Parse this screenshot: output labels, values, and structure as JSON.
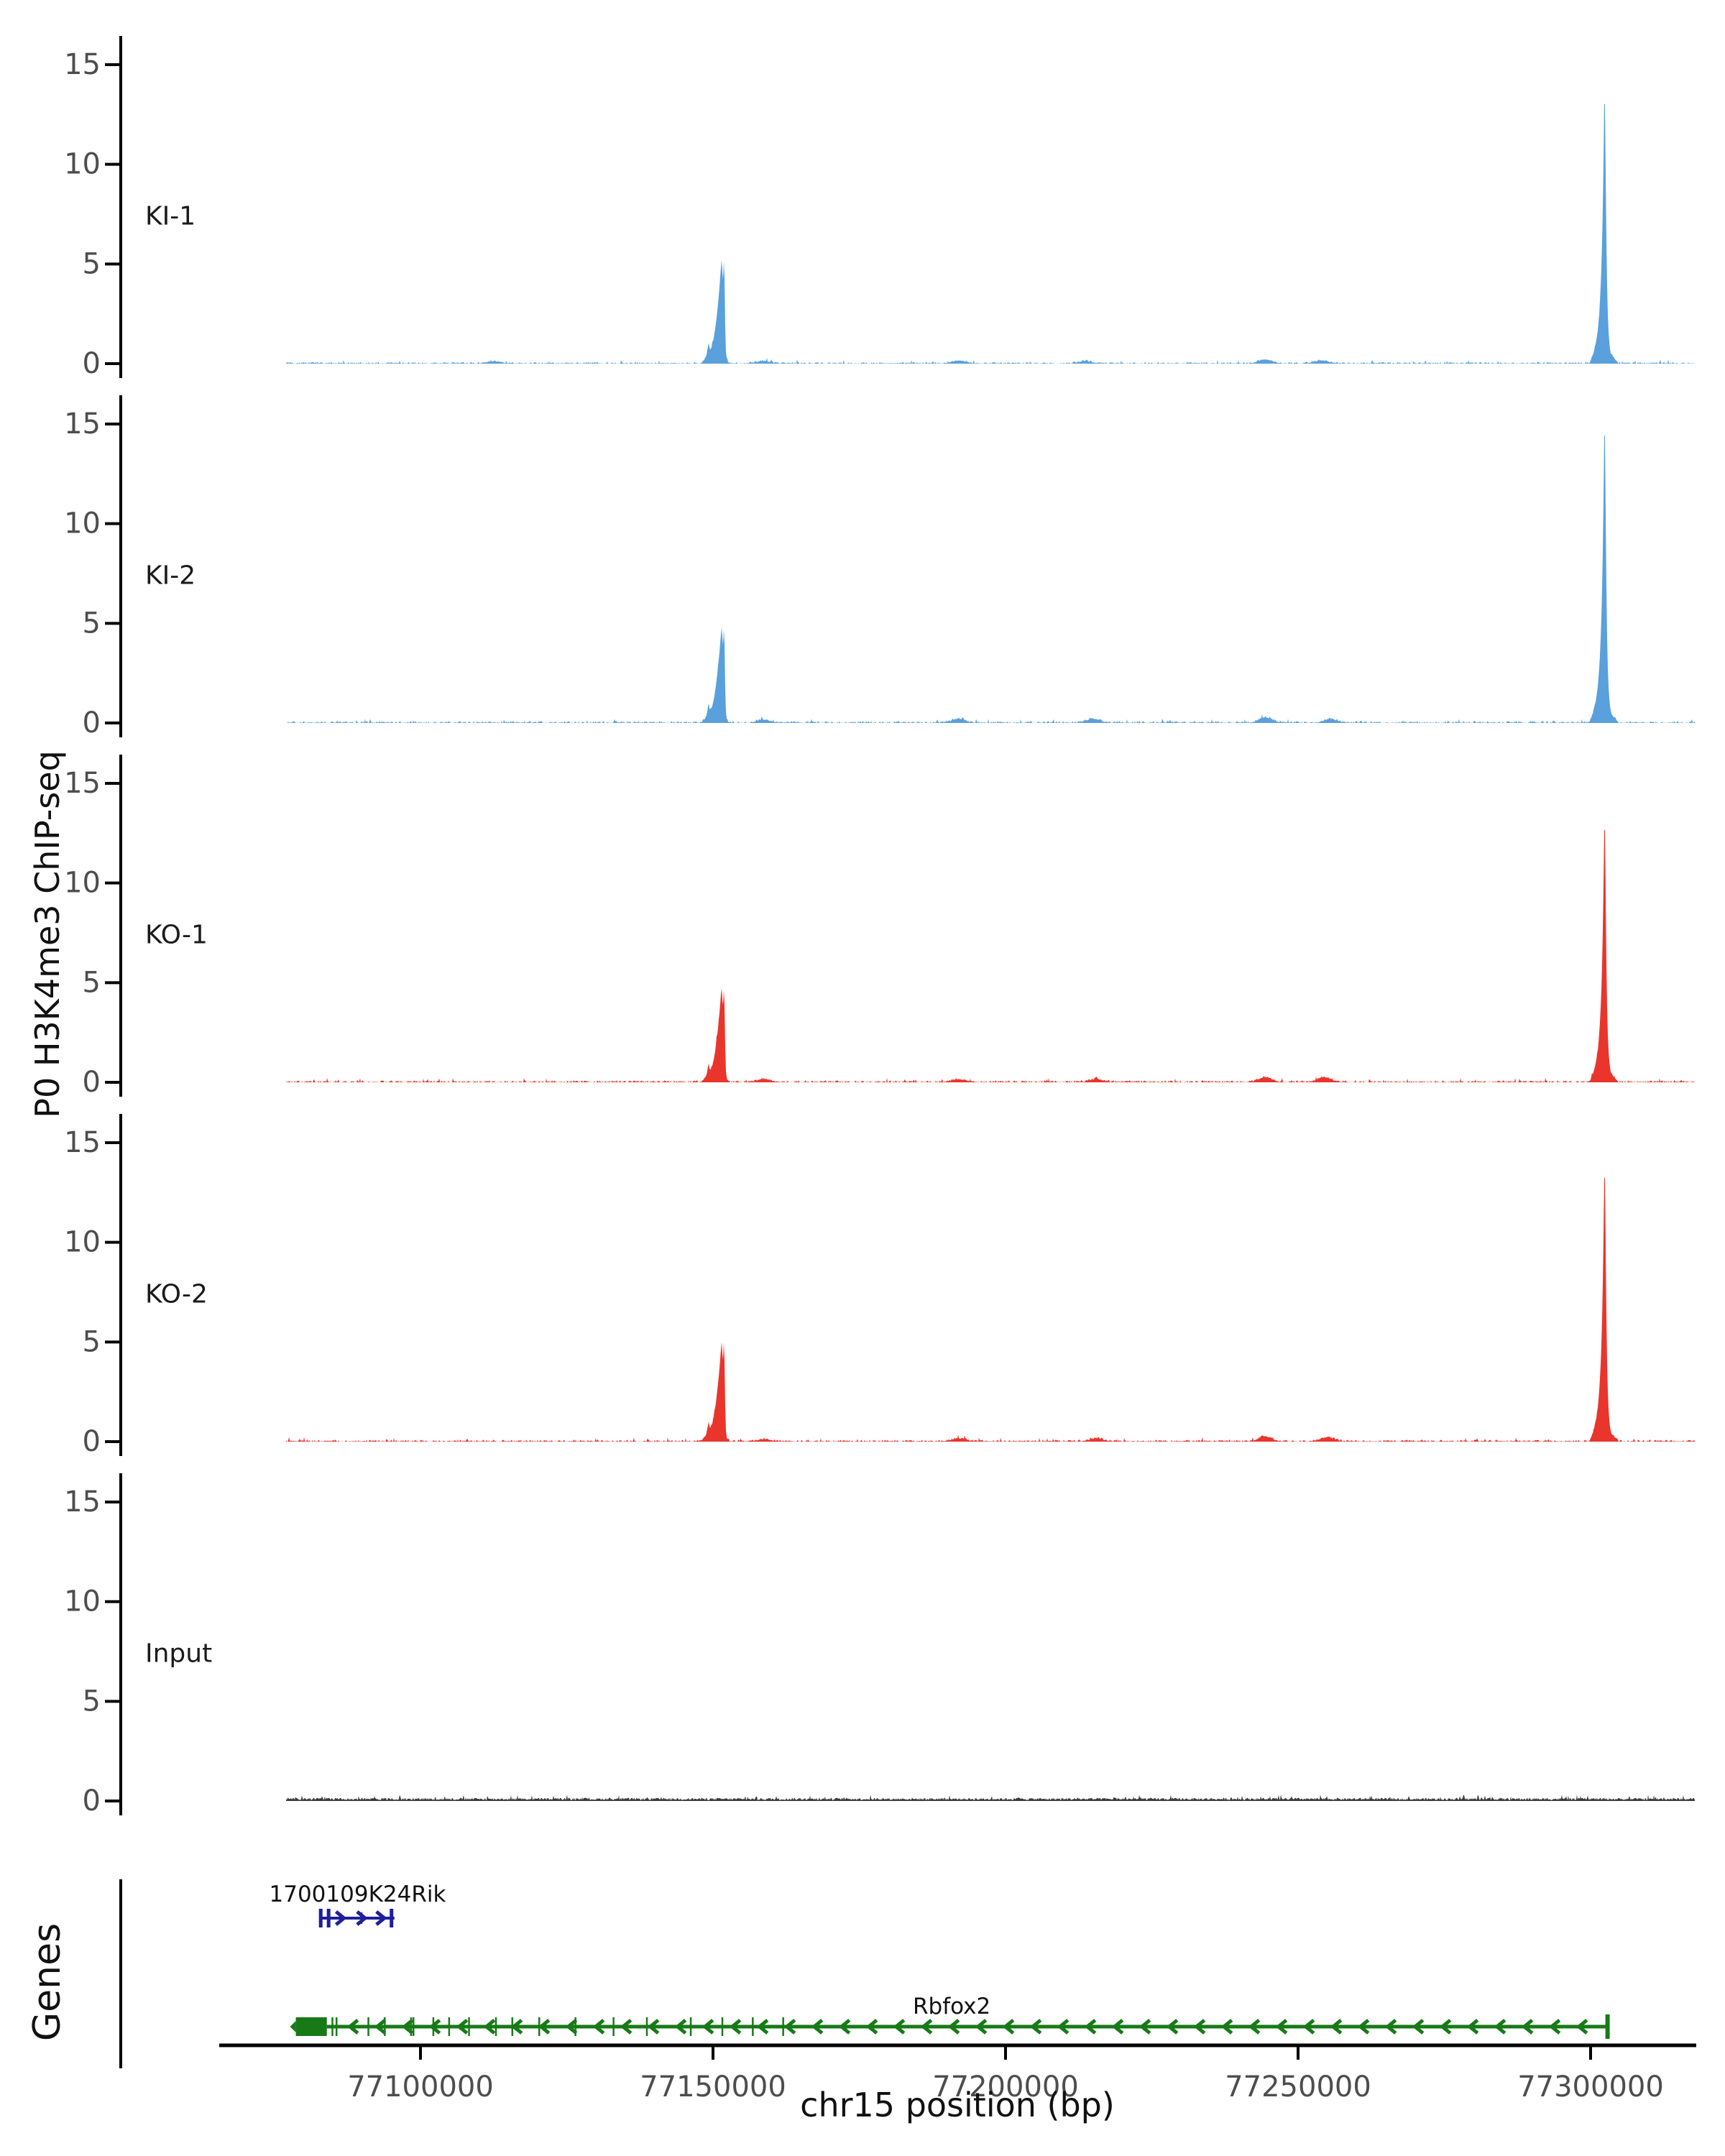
{
  "figure": {
    "y_axis_label": "P0 H3K4me3 ChIP-seq",
    "genes_axis_label": "Genes",
    "x_axis_title": "chr15 position (bp)",
    "background": "#ffffff",
    "axis_color": "#000000",
    "tick_label_color": "#4d4d4d",
    "track_label_color": "#1a1a1a"
  },
  "chart_data": {
    "type": "area",
    "subtype": "genome-browser-coverage-tracks",
    "chromosome": "chr15",
    "xlabel": "chr15 position (bp)",
    "ylabel": "P0 H3K4me3 ChIP-seq",
    "x_range_bp": [
      77077000,
      77318000
    ],
    "x_ticks_bp": [
      77100000,
      77150000,
      77200000,
      77250000,
      77300000
    ],
    "x_tick_labels": [
      "77100000",
      "77150000",
      "77200000",
      "77250000",
      "77300000"
    ],
    "y_ticks": [
      0,
      5,
      10,
      15
    ],
    "ylim": [
      0,
      16.4
    ],
    "grid": false,
    "tracks": [
      {
        "label": "KI-1",
        "color": "#59A0DC",
        "noise_amplitude": 0.07,
        "peaks": [
          {
            "pos_bp": 77151900,
            "height": 5.2,
            "shape": "double-tip"
          },
          {
            "pos_bp": 77302400,
            "height": 14.1,
            "shape": "needle"
          }
        ],
        "bumps": [
          {
            "pos_bp": 77112500,
            "height": 0.1
          },
          {
            "pos_bp": 77158700,
            "height": 0.12
          },
          {
            "pos_bp": 77192000,
            "height": 0.15
          },
          {
            "pos_bp": 77213600,
            "height": 0.12
          },
          {
            "pos_bp": 77244400,
            "height": 0.2
          },
          {
            "pos_bp": 77254000,
            "height": 0.15
          }
        ]
      },
      {
        "label": "KI-2",
        "color": "#59A0DC",
        "noise_amplitude": 0.08,
        "peaks": [
          {
            "pos_bp": 77151900,
            "height": 4.8,
            "shape": "double-tip"
          },
          {
            "pos_bp": 77302400,
            "height": 15.6,
            "shape": "needle"
          }
        ],
        "bumps": [
          {
            "pos_bp": 77158700,
            "height": 0.15
          },
          {
            "pos_bp": 77192000,
            "height": 0.2
          },
          {
            "pos_bp": 77215000,
            "height": 0.2
          },
          {
            "pos_bp": 77244400,
            "height": 0.25
          },
          {
            "pos_bp": 77255500,
            "height": 0.18
          }
        ]
      },
      {
        "label": "KO-1",
        "color": "#E9352C",
        "noise_amplitude": 0.08,
        "peaks": [
          {
            "pos_bp": 77151900,
            "height": 4.7,
            "shape": "double-tip"
          },
          {
            "pos_bp": 77302400,
            "height": 13.7,
            "shape": "needle"
          }
        ],
        "bumps": [
          {
            "pos_bp": 77158700,
            "height": 0.15
          },
          {
            "pos_bp": 77192000,
            "height": 0.15
          },
          {
            "pos_bp": 77215500,
            "height": 0.15
          },
          {
            "pos_bp": 77244400,
            "height": 0.25
          },
          {
            "pos_bp": 77254500,
            "height": 0.25
          }
        ]
      },
      {
        "label": "KO-2",
        "color": "#E9352C",
        "noise_amplitude": 0.08,
        "peaks": [
          {
            "pos_bp": 77151900,
            "height": 5.0,
            "shape": "double-tip"
          },
          {
            "pos_bp": 77302400,
            "height": 14.3,
            "shape": "needle"
          }
        ],
        "bumps": [
          {
            "pos_bp": 77158700,
            "height": 0.12
          },
          {
            "pos_bp": 77192000,
            "height": 0.15
          },
          {
            "pos_bp": 77215500,
            "height": 0.15
          },
          {
            "pos_bp": 77244400,
            "height": 0.25
          },
          {
            "pos_bp": 77255000,
            "height": 0.2
          }
        ]
      },
      {
        "label": "Input",
        "color": "#3A3A3A",
        "noise_amplitude": 0.16,
        "peaks": [],
        "bumps": []
      }
    ],
    "genes": [
      {
        "name": "1700109K24Rik",
        "color": "#1F1F9B",
        "strand": "+",
        "row": "upper",
        "start_bp": 77082950,
        "end_bp": 77095550,
        "exon_bars": [
          {
            "pos_bp": 77082950,
            "size": "large"
          },
          {
            "pos_bp": 77084300,
            "size": "large"
          },
          {
            "pos_bp": 77089950,
            "size": "small"
          },
          {
            "pos_bp": 77095050,
            "size": "large"
          }
        ],
        "arrows_bp": [
          77086800,
          77090400,
          77093700
        ]
      },
      {
        "name": "Rbfox2",
        "color": "#177A17",
        "strand": "-",
        "row": "lower",
        "start_bp": 77078700,
        "end_bp": 77302900,
        "thick_exon_bp": [
          77078700,
          77084000
        ],
        "exon_ticks_bp": [
          77084950,
          77085650,
          77091100,
          77093900,
          77098400,
          77098800,
          77102200,
          77104900,
          77108300,
          77112900,
          77115700,
          77120300,
          77126500,
          77133000,
          77138700,
          77146200,
          77151600,
          77156800,
          77162000
        ]
      }
    ]
  }
}
